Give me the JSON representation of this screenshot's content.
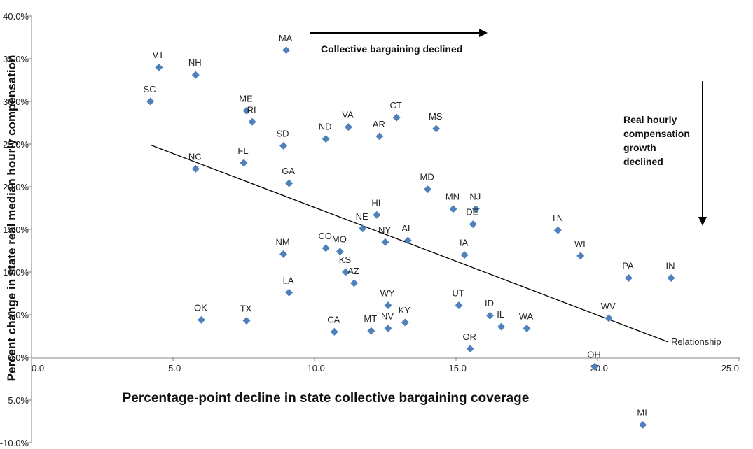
{
  "chart_data": {
    "type": "scatter",
    "xlabel": "Percentage-point decline in state collective bargaining coverage",
    "ylabel": "Percent change in state real median hourly compensation",
    "xlim": [
      0,
      -25
    ],
    "ylim": [
      -10,
      40
    ],
    "x_ticks": [
      "0.0",
      "-5.0",
      "-10.0",
      "-15.0",
      "-20.0",
      "-25.0"
    ],
    "y_ticks": [
      "40.0%",
      "35.0%",
      "30.0%",
      "25.0%",
      "20.0%",
      "15.0%",
      "10.0%",
      "5.0%",
      "0.0%",
      "-5.0%",
      "-10.0%"
    ],
    "grid": false,
    "marker_color": "#4f81bd",
    "line_color": "#000000",
    "trend_line": {
      "label": "Relationship",
      "x": [
        -4.2,
        -22.5
      ],
      "y": [
        24.9,
        1.8
      ]
    },
    "annotations": {
      "arrow_right_text": "Collective bargaining declined",
      "arrow_down_text": [
        "Real hourly",
        "compensation",
        "growth",
        "declined"
      ]
    },
    "points": [
      {
        "label": "MA",
        "x": -9.0,
        "y": 36.0
      },
      {
        "label": "VT",
        "x": -4.5,
        "y": 34.0
      },
      {
        "label": "NH",
        "x": -5.8,
        "y": 33.1
      },
      {
        "label": "SC",
        "x": -4.2,
        "y": 30.0
      },
      {
        "label": "ME",
        "x": -7.6,
        "y": 28.9
      },
      {
        "label": "RI",
        "x": -7.8,
        "y": 27.6
      },
      {
        "label": "CT",
        "x": -12.9,
        "y": 28.1
      },
      {
        "label": "MS",
        "x": -14.3,
        "y": 26.8
      },
      {
        "label": "VA",
        "x": -11.2,
        "y": 27.0
      },
      {
        "label": "AR",
        "x": -12.3,
        "y": 25.9
      },
      {
        "label": "ND",
        "x": -10.4,
        "y": 25.6
      },
      {
        "label": "SD",
        "x": -8.9,
        "y": 24.8
      },
      {
        "label": "NC",
        "x": -5.8,
        "y": 22.1
      },
      {
        "label": "FL",
        "x": -7.5,
        "y": 22.8
      },
      {
        "label": "GA",
        "x": -9.1,
        "y": 20.4
      },
      {
        "label": "MD",
        "x": -14.0,
        "y": 19.7
      },
      {
        "label": "MN",
        "x": -14.9,
        "y": 17.4
      },
      {
        "label": "NJ",
        "x": -15.7,
        "y": 17.4
      },
      {
        "label": "DE",
        "x": -15.6,
        "y": 15.6
      },
      {
        "label": "HI",
        "x": -12.2,
        "y": 16.7
      },
      {
        "label": "NE",
        "x": -11.7,
        "y": 15.1
      },
      {
        "label": "NY",
        "x": -12.5,
        "y": 13.5
      },
      {
        "label": "AL",
        "x": -13.3,
        "y": 13.7
      },
      {
        "label": "TN",
        "x": -18.6,
        "y": 14.9
      },
      {
        "label": "WI",
        "x": -19.4,
        "y": 11.9
      },
      {
        "label": "IA",
        "x": -15.3,
        "y": 12.0
      },
      {
        "label": "NM",
        "x": -8.9,
        "y": 12.1
      },
      {
        "label": "CO",
        "x": -10.4,
        "y": 12.8
      },
      {
        "label": "MO",
        "x": -10.9,
        "y": 12.4
      },
      {
        "label": "KS",
        "x": -11.1,
        "y": 10.0
      },
      {
        "label": "AZ",
        "x": -11.4,
        "y": 8.7
      },
      {
        "label": "LA",
        "x": -9.1,
        "y": 7.6
      },
      {
        "label": "PA",
        "x": -21.1,
        "y": 9.3
      },
      {
        "label": "IN",
        "x": -22.6,
        "y": 9.3
      },
      {
        "label": "WY",
        "x": -12.6,
        "y": 6.1
      },
      {
        "label": "UT",
        "x": -15.1,
        "y": 6.1
      },
      {
        "label": "ID",
        "x": -16.2,
        "y": 4.9
      },
      {
        "label": "IL",
        "x": -16.6,
        "y": 3.6
      },
      {
        "label": "WA",
        "x": -17.5,
        "y": 3.4
      },
      {
        "label": "WV",
        "x": -20.4,
        "y": 4.6
      },
      {
        "label": "OK",
        "x": -6.0,
        "y": 4.4
      },
      {
        "label": "TX",
        "x": -7.6,
        "y": 4.3
      },
      {
        "label": "CA",
        "x": -10.7,
        "y": 3.0
      },
      {
        "label": "MT",
        "x": -12.0,
        "y": 3.1
      },
      {
        "label": "NV",
        "x": -12.6,
        "y": 3.4
      },
      {
        "label": "KY",
        "x": -13.2,
        "y": 4.1
      },
      {
        "label": "OR",
        "x": -15.5,
        "y": 1.0
      },
      {
        "label": "OH",
        "x": -19.9,
        "y": -1.1
      },
      {
        "label": "MI",
        "x": -21.6,
        "y": -7.9
      }
    ]
  }
}
